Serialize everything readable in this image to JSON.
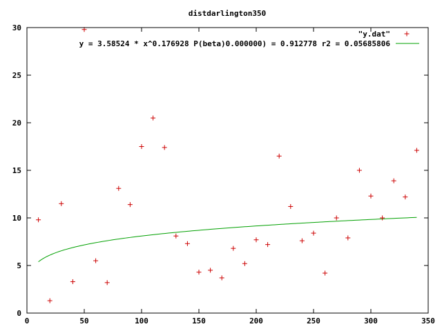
{
  "chart_data": {
    "type": "scatter",
    "title": "distdarlington350",
    "xlabel": "",
    "ylabel": "",
    "xlim": [
      0,
      350
    ],
    "ylim": [
      0,
      30
    ],
    "x_ticks": [
      0,
      50,
      100,
      150,
      200,
      250,
      300,
      350
    ],
    "y_ticks": [
      0,
      5,
      10,
      15,
      20,
      25,
      30
    ],
    "legend_position": "top-right",
    "grid": false,
    "series": [
      {
        "name": "\"y.dat\"",
        "kind": "points",
        "marker": "plus",
        "color": "#cc0000",
        "points": [
          [
            10,
            9.8
          ],
          [
            20,
            1.3
          ],
          [
            30,
            11.5
          ],
          [
            40,
            3.3
          ],
          [
            50,
            29.8
          ],
          [
            60,
            5.5
          ],
          [
            70,
            3.2
          ],
          [
            80,
            13.1
          ],
          [
            90,
            11.4
          ],
          [
            100,
            17.5
          ],
          [
            110,
            20.5
          ],
          [
            120,
            17.4
          ],
          [
            130,
            8.1
          ],
          [
            140,
            7.3
          ],
          [
            150,
            4.3
          ],
          [
            160,
            4.5
          ],
          [
            170,
            3.7
          ],
          [
            180,
            6.8
          ],
          [
            190,
            5.2
          ],
          [
            200,
            7.7
          ],
          [
            210,
            7.2
          ],
          [
            220,
            16.5
          ],
          [
            230,
            11.2
          ],
          [
            240,
            7.6
          ],
          [
            250,
            8.4
          ],
          [
            260,
            4.2
          ],
          [
            270,
            10.0
          ],
          [
            280,
            7.9
          ],
          [
            290,
            15.0
          ],
          [
            300,
            12.3
          ],
          [
            310,
            10.0
          ],
          [
            320,
            13.9
          ],
          [
            330,
            12.2
          ],
          [
            340,
            17.1
          ]
        ]
      },
      {
        "name": "y = 3.58524 * x^0.176928 P(beta)0.000000) = 0.912778 r2 = 0.05685806",
        "kind": "fit",
        "color": "#00a000",
        "coefficient": 3.58524,
        "exponent": 0.176928,
        "x_range": [
          10,
          340
        ]
      }
    ]
  }
}
